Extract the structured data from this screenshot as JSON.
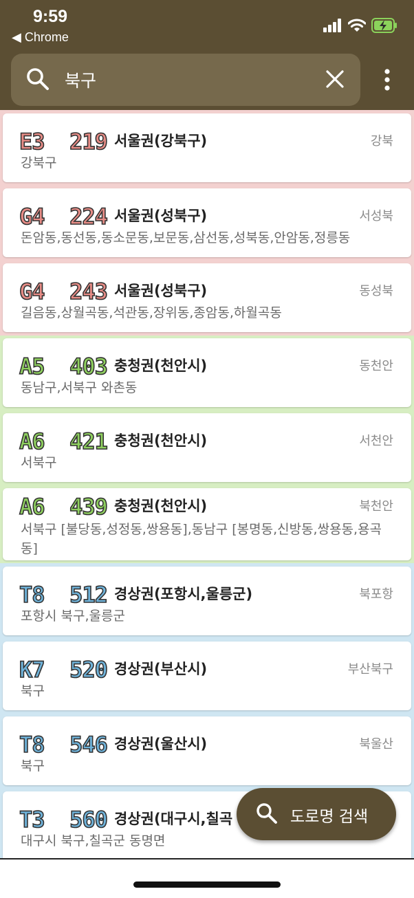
{
  "status": {
    "time": "9:59",
    "back_label": "◀ Chrome"
  },
  "search": {
    "query": "북구"
  },
  "colors": {
    "header": "#5b4e33",
    "search_box": "#76694c",
    "seoul_band": "#f3d1d0",
    "seoul_code": "#e78c86",
    "chungcheong_band": "#d7eec2",
    "chungcheong_code": "#8fd05f",
    "gyeongsang_band": "#cfe6f2",
    "gyeongsang_code": "#6fb3da"
  },
  "results": [
    {
      "code": "E3",
      "number": "219",
      "region": "서울권(강북구)",
      "abbr": "강북",
      "areas": "강북구"
    },
    {
      "code": "G4",
      "number": "224",
      "region": "서울권(성북구)",
      "abbr": "서성북",
      "areas": "돈암동,동선동,동소문동,보문동,삼선동,성북동,안암동,정릉동"
    },
    {
      "code": "G4",
      "number": "243",
      "region": "서울권(성북구)",
      "abbr": "동성북",
      "areas": "길음동,상월곡동,석관동,장위동,종암동,하월곡동"
    },
    {
      "code": "A5",
      "number": "403",
      "region": "충청권(천안시)",
      "abbr": "동천안",
      "areas": "동남구,서북구 와촌동"
    },
    {
      "code": "A6",
      "number": "421",
      "region": "충청권(천안시)",
      "abbr": "서천안",
      "areas": "서북구"
    },
    {
      "code": "A6",
      "number": "439",
      "region": "충청권(천안시)",
      "abbr": "북천안",
      "areas": "서북구 [불당동,성정동,쌍용동],동남구 [봉명동,신방동,쌍용동,용곡동]"
    },
    {
      "code": "T8",
      "number": "512",
      "region": "경상권(포항시,울릉군)",
      "abbr": "북포항",
      "areas": "포항시 북구,울릉군"
    },
    {
      "code": "K7",
      "number": "520",
      "region": "경상권(부산시)",
      "abbr": "부산북구",
      "areas": "북구"
    },
    {
      "code": "T8",
      "number": "546",
      "region": "경상권(울산시)",
      "abbr": "북울산",
      "areas": "북구"
    },
    {
      "code": "T3",
      "number": "560",
      "region": "경상권(대구시,칠곡",
      "abbr": "",
      "areas": "대구시 북구,칠곡군 동명면"
    }
  ],
  "fab": {
    "label": "도로명 검색"
  }
}
